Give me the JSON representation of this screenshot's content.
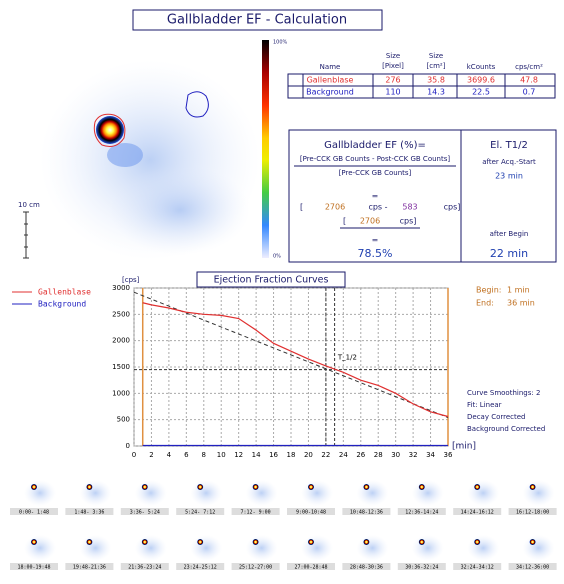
{
  "header": {
    "title": "Gallbladder EF - Calculation"
  },
  "image": {
    "colorbar_top": "100%",
    "colorbar_bottom": "0%",
    "scale": "10 cm"
  },
  "table": {
    "columns": [
      [
        "Name"
      ],
      [
        "Size",
        "[Pixel]"
      ],
      [
        "Size",
        "[cm²]"
      ],
      [
        "kCounts"
      ],
      [
        "cps/cm²"
      ]
    ],
    "rows": [
      [
        "Gallenblase",
        "276",
        "35.8",
        "3699.6",
        "47.8"
      ],
      [
        "Background",
        "110",
        "14.3",
        "22.5",
        "0.7"
      ]
    ]
  },
  "ef_box": {
    "title": "Gallbladder EF (%)=",
    "numerator": "[Pre-CCK GB Counts - Post-CCK GB Counts]",
    "denominator": "[Pre-CCK GB Counts]",
    "eq1": "=",
    "open1": "[",
    "pre": "2706",
    "cps_minus": "cps -",
    "post": "583",
    "cps_close": "cps]",
    "open2": "[",
    "pre2": "2706",
    "cps_close2": "cps]",
    "eq2": "=",
    "result": "78.5%"
  },
  "t_half_box": {
    "title": "El. T1/2",
    "label1": "after Acq.-Start",
    "value1": "23 min",
    "label2": "after Begin",
    "value2": "22 min"
  },
  "chart_data": {
    "type": "line",
    "title": "Ejection Fraction Curves",
    "y_label": "[cps]",
    "x_label": "[min]",
    "x": [
      1,
      2,
      4,
      6,
      8,
      10,
      12,
      14,
      16,
      18,
      20,
      22,
      24,
      26,
      28,
      30,
      32,
      34,
      36
    ],
    "series": [
      {
        "name": "Gallenblase",
        "color": "#e03030",
        "values": [
          2720,
          2680,
          2620,
          2540,
          2500,
          2480,
          2420,
          2200,
          1950,
          1800,
          1650,
          1520,
          1400,
          1250,
          1150,
          1000,
          800,
          650,
          560
        ]
      },
      {
        "name": "Background",
        "color": "#2020c0",
        "values": [
          10,
          10,
          10,
          10,
          10,
          10,
          10,
          10,
          10,
          10,
          10,
          10,
          10,
          10,
          10,
          10,
          10,
          10,
          10
        ]
      }
    ],
    "fit_line": {
      "x": [
        0,
        36
      ],
      "values": [
        2920,
        540
      ]
    },
    "markers_x": [
      1,
      36
    ],
    "t_half": {
      "label": "T_1/2",
      "x": [
        22,
        23
      ],
      "y": 1450
    },
    "xlim": [
      0,
      36
    ],
    "ylim": [
      0,
      3000
    ],
    "xticks": [
      0,
      2,
      4,
      6,
      8,
      10,
      12,
      14,
      16,
      18,
      20,
      22,
      24,
      26,
      28,
      30,
      32,
      34,
      36
    ],
    "yticks": [
      0,
      500,
      1000,
      1500,
      2000,
      2500,
      3000
    ],
    "grid": true
  },
  "chart_info": {
    "begin_label": "Begin:",
    "begin": "1 min",
    "end_label": "End:",
    "end": "36 min",
    "notes": [
      "Curve Smoothings: 2",
      "Fit: Linear",
      "Decay Corrected",
      "Background Corrected"
    ]
  },
  "thumbnails": [
    "0:00- 1:48",
    "1:48- 3:36",
    "3:36- 5:24",
    "5:24- 7:12",
    "7:12- 9:00",
    "9:00-10:48",
    "10:48-12:36",
    "12:36-14:24",
    "14:24-16:12",
    "16:12-18:00",
    "18:00-19:48",
    "19:48-21:36",
    "21:36-23:24",
    "23:24-25:12",
    "25:12-27:00",
    "27:00-28:48",
    "28:48-30:36",
    "30:36-32:24",
    "32:24-34:12",
    "34:12-36:00"
  ]
}
